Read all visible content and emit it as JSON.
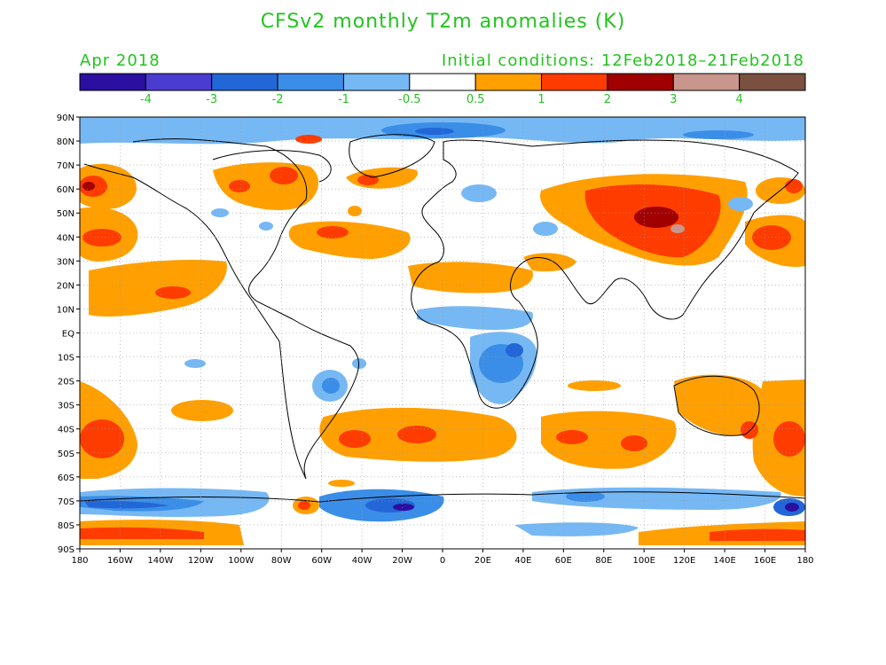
{
  "title": "CFSv2 monthly T2m anomalies (K)",
  "forecast_month": "Apr 2018",
  "initial_conditions": "Initial conditions: 12Feb2018–21Feb2018",
  "colorbar": {
    "colors": [
      "#2a0fa0",
      "#4a3cd0",
      "#2366d8",
      "#3a8ee8",
      "#76b8f4",
      "#ffffff",
      "#ffa000",
      "#ff3c00",
      "#a00000",
      "#c8968c",
      "#7a5040"
    ],
    "labels": [
      "-4",
      "-3",
      "-2",
      "-1",
      "-0.5",
      "0.5",
      "1",
      "2",
      "3",
      "4"
    ]
  },
  "map": {
    "lat_labels": [
      "90N",
      "80N",
      "70N",
      "60N",
      "50N",
      "40N",
      "30N",
      "20N",
      "10N",
      "EQ",
      "10S",
      "20S",
      "30S",
      "40S",
      "50S",
      "60S",
      "70S",
      "80S",
      "90S"
    ],
    "lon_labels": [
      "180",
      "160W",
      "140W",
      "120W",
      "100W",
      "80W",
      "60W",
      "40W",
      "20W",
      "0",
      "20E",
      "40E",
      "60E",
      "80E",
      "100E",
      "120E",
      "140E",
      "160E",
      "180"
    ]
  }
}
